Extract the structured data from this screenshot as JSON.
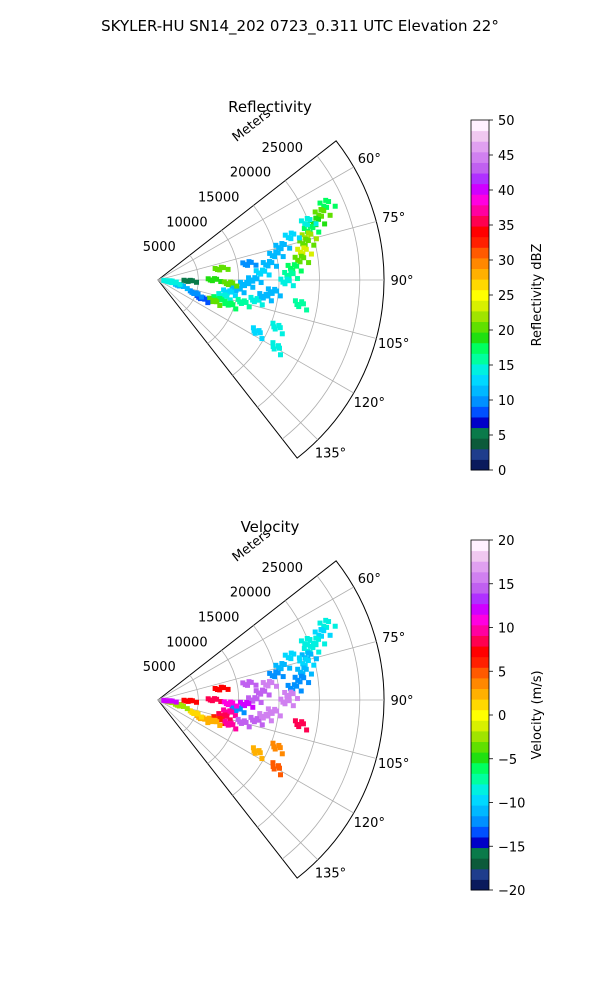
{
  "figure": {
    "suptitle": "SKYLER-HU  SN14_202  0723_0.311 UTC Elevation 22°"
  },
  "chart_data": [
    {
      "type": "polar-sector-radar",
      "title": "Reflectivity",
      "radial_label": "Meters",
      "radial_ticks": [
        5000,
        10000,
        15000,
        20000,
        25000
      ],
      "rmax": 28000,
      "theta_range_deg": [
        52,
        142
      ],
      "theta_ticks": [
        "60°",
        "75°",
        "90°",
        "105°",
        "120°",
        "135°"
      ],
      "theta_tick_values": [
        60,
        75,
        90,
        105,
        120,
        135
      ],
      "grid": true,
      "colorbar": {
        "label": "Reflectivity dBZ",
        "min": 0,
        "max": 50,
        "ticks": [
          "0",
          "5",
          "10",
          "15",
          "20",
          "25",
          "30",
          "35",
          "40",
          "45",
          "50"
        ],
        "colors": [
          "#0a1a5c",
          "#1f3d8c",
          "#0c5a3a",
          "#0a7a4a",
          "#0000c8",
          "#0050ff",
          "#0090ff",
          "#00b8ff",
          "#00d8ff",
          "#00f0e0",
          "#00ff9e",
          "#00ff60",
          "#20e010",
          "#60e000",
          "#a0e400",
          "#d8f000",
          "#ffff00",
          "#ffd800",
          "#ffb000",
          "#ff8800",
          "#ff5a00",
          "#ff2000",
          "#ff0000",
          "#ff0050",
          "#ff00a0",
          "#ff00e0",
          "#d000ff",
          "#b030ff",
          "#c060f0",
          "#d080f0",
          "#e0a0f0",
          "#f0c8f0",
          "#fff0ff"
        ]
      },
      "value_field": "reflectivity_dbz",
      "cells": [
        {
          "r": 23000,
          "az": 66,
          "v": 18
        },
        {
          "r": 22000,
          "az": 68,
          "v": 20
        },
        {
          "r": 21000,
          "az": 70,
          "v": 19
        },
        {
          "r": 20000,
          "az": 72,
          "v": 17
        },
        {
          "r": 19500,
          "az": 74,
          "v": 22
        },
        {
          "r": 19000,
          "az": 76,
          "v": 21
        },
        {
          "r": 18500,
          "az": 79,
          "v": 23
        },
        {
          "r": 18000,
          "az": 82,
          "v": 20
        },
        {
          "r": 17000,
          "az": 85,
          "v": 18
        },
        {
          "r": 16500,
          "az": 88,
          "v": 16
        },
        {
          "r": 16000,
          "az": 91,
          "v": 14
        },
        {
          "r": 20000,
          "az": 69,
          "v": 15
        },
        {
          "r": 17500,
          "az": 72,
          "v": 13
        },
        {
          "r": 16000,
          "az": 75,
          "v": 12
        },
        {
          "r": 15000,
          "az": 78,
          "v": 11
        },
        {
          "r": 14000,
          "az": 82,
          "v": 12
        },
        {
          "r": 13000,
          "az": 86,
          "v": 13
        },
        {
          "r": 12000,
          "az": 90,
          "v": 12
        },
        {
          "r": 11000,
          "az": 93,
          "v": 11
        },
        {
          "r": 10000,
          "az": 97,
          "v": 12
        },
        {
          "r": 9000,
          "az": 100,
          "v": 13
        },
        {
          "r": 8500,
          "az": 104,
          "v": 15
        },
        {
          "r": 8000,
          "az": 108,
          "v": 18
        },
        {
          "r": 7500,
          "az": 111,
          "v": 20
        },
        {
          "r": 9500,
          "az": 109,
          "v": 17
        },
        {
          "r": 11000,
          "az": 105,
          "v": 16
        },
        {
          "r": 12500,
          "az": 102,
          "v": 14
        },
        {
          "r": 13500,
          "az": 99,
          "v": 12
        },
        {
          "r": 14500,
          "az": 96,
          "v": 11
        },
        {
          "r": 6000,
          "az": 113,
          "v": 8
        },
        {
          "r": 5000,
          "az": 110,
          "v": 10
        },
        {
          "r": 3000,
          "az": 105,
          "v": 12
        },
        {
          "r": 2000,
          "az": 100,
          "v": 14
        },
        {
          "r": 1500,
          "az": 95,
          "v": 15
        },
        {
          "r": 4000,
          "az": 92,
          "v": 6
        },
        {
          "r": 11500,
          "az": 80,
          "v": 10
        },
        {
          "r": 16000,
          "az": 112,
          "v": 14
        },
        {
          "r": 17000,
          "az": 120,
          "v": 15
        },
        {
          "r": 14000,
          "az": 118,
          "v": 13
        },
        {
          "r": 7000,
          "az": 90,
          "v": 19
        },
        {
          "r": 9000,
          "az": 93,
          "v": 20
        },
        {
          "r": 8000,
          "az": 80,
          "v": 20
        },
        {
          "r": 18000,
          "az": 100,
          "v": 16
        }
      ]
    },
    {
      "type": "polar-sector-radar",
      "title": "Velocity",
      "radial_label": "Meters",
      "radial_ticks": [
        5000,
        10000,
        15000,
        20000,
        25000
      ],
      "rmax": 28000,
      "theta_range_deg": [
        52,
        142
      ],
      "theta_ticks": [
        "60°",
        "75°",
        "90°",
        "105°",
        "120°",
        "135°"
      ],
      "theta_tick_values": [
        60,
        75,
        90,
        105,
        120,
        135
      ],
      "grid": true,
      "colorbar": {
        "label": "Velocity (m/s)",
        "min": -20,
        "max": 20,
        "ticks": [
          "−20",
          "−15",
          "−10",
          "−5",
          "0",
          "5",
          "10",
          "15",
          "20"
        ],
        "colors": [
          "#0a1a5c",
          "#1f3d8c",
          "#0c5a3a",
          "#0a7a4a",
          "#0000c8",
          "#0050ff",
          "#0090ff",
          "#00b8ff",
          "#00d8ff",
          "#00f0e0",
          "#00ff9e",
          "#00ff60",
          "#20e010",
          "#60e000",
          "#a0e400",
          "#d8f000",
          "#ffff00",
          "#ffd800",
          "#ffb000",
          "#ff8800",
          "#ff5a00",
          "#ff2000",
          "#ff0000",
          "#ff0050",
          "#ff00a0",
          "#ff00e0",
          "#d000ff",
          "#b030ff",
          "#c060f0",
          "#d080f0",
          "#e0a0f0",
          "#f0c8f0",
          "#fff0ff"
        ]
      },
      "value_field": "velocity_ms",
      "cells": [
        {
          "r": 23000,
          "az": 66,
          "v": -9
        },
        {
          "r": 22000,
          "az": 68,
          "v": -10
        },
        {
          "r": 21000,
          "az": 70,
          "v": -8
        },
        {
          "r": 20000,
          "az": 72,
          "v": -9
        },
        {
          "r": 19500,
          "az": 74,
          "v": -11
        },
        {
          "r": 19000,
          "az": 76,
          "v": -10
        },
        {
          "r": 18500,
          "az": 79,
          "v": -11
        },
        {
          "r": 18000,
          "az": 82,
          "v": -12
        },
        {
          "r": 17000,
          "az": 85,
          "v": -12
        },
        {
          "r": 16500,
          "az": 88,
          "v": 16
        },
        {
          "r": 16000,
          "az": 91,
          "v": 16
        },
        {
          "r": 20000,
          "az": 69,
          "v": -9
        },
        {
          "r": 17500,
          "az": 72,
          "v": -10
        },
        {
          "r": 16000,
          "az": 75,
          "v": -11
        },
        {
          "r": 15000,
          "az": 78,
          "v": -12
        },
        {
          "r": 14000,
          "az": 82,
          "v": 16
        },
        {
          "r": 13000,
          "az": 86,
          "v": 15
        },
        {
          "r": 12000,
          "az": 90,
          "v": 15
        },
        {
          "r": 11000,
          "az": 93,
          "v": 12
        },
        {
          "r": 10000,
          "az": 97,
          "v": -12
        },
        {
          "r": 9000,
          "az": 100,
          "v": 10
        },
        {
          "r": 8500,
          "az": 104,
          "v": 9
        },
        {
          "r": 8000,
          "az": 108,
          "v": 6
        },
        {
          "r": 7500,
          "az": 111,
          "v": 3
        },
        {
          "r": 9500,
          "az": 109,
          "v": 10
        },
        {
          "r": 11000,
          "az": 105,
          "v": 14
        },
        {
          "r": 12500,
          "az": 102,
          "v": 15
        },
        {
          "r": 13500,
          "az": 99,
          "v": 16
        },
        {
          "r": 14500,
          "az": 96,
          "v": 16
        },
        {
          "r": 6000,
          "az": 113,
          "v": 2
        },
        {
          "r": 5000,
          "az": 110,
          "v": 1
        },
        {
          "r": 3000,
          "az": 105,
          "v": -2
        },
        {
          "r": 2000,
          "az": 100,
          "v": -3
        },
        {
          "r": 1500,
          "az": 95,
          "v": 12
        },
        {
          "r": 4000,
          "az": 92,
          "v": 7
        },
        {
          "r": 11500,
          "az": 80,
          "v": 14
        },
        {
          "r": 16000,
          "az": 112,
          "v": 4
        },
        {
          "r": 17000,
          "az": 120,
          "v": 5
        },
        {
          "r": 14000,
          "az": 118,
          "v": 3
        },
        {
          "r": 7000,
          "az": 90,
          "v": 8
        },
        {
          "r": 9000,
          "az": 93,
          "v": 11
        },
        {
          "r": 8000,
          "az": 80,
          "v": 7
        },
        {
          "r": 18000,
          "az": 100,
          "v": 9
        }
      ]
    }
  ]
}
